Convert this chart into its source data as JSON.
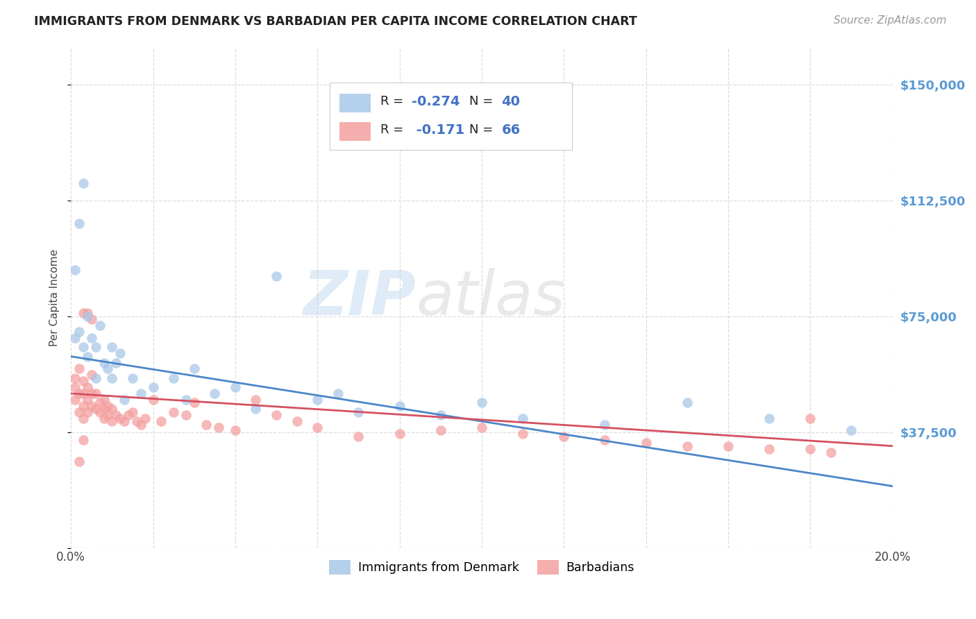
{
  "title": "IMMIGRANTS FROM DENMARK VS BARBADIAN PER CAPITA INCOME CORRELATION CHART",
  "source": "Source: ZipAtlas.com",
  "ylabel": "Per Capita Income",
  "yticks": [
    0,
    37500,
    75000,
    112500,
    150000
  ],
  "ytick_labels": [
    "",
    "$37,500",
    "$75,000",
    "$112,500",
    "$150,000"
  ],
  "xmin": 0.0,
  "xmax": 0.2,
  "ymin": 0,
  "ymax": 162000,
  "legend_label1": "Immigrants from Denmark",
  "legend_label2": "Barbadians",
  "legend_r1": "R = ",
  "legend_rv1": "-0.274",
  "legend_n1_label": "N = ",
  "legend_n1_val": "40",
  "legend_r2": "R = ",
  "legend_rv2": "-0.171",
  "legend_n2_label": "N = ",
  "legend_n2_val": "66",
  "color_blue": "#a8c8e8",
  "color_pink": "#f4a0a0",
  "line_color_blue": "#4a86c8",
  "line_color_pink": "#d45060",
  "watermark": "ZIPatlas",
  "blue_line_x0": 0.0,
  "blue_line_y0": 62000,
  "blue_line_x1": 0.2,
  "blue_line_y1": 20000,
  "pink_line_x0": 0.0,
  "pink_line_y0": 50000,
  "pink_line_x1": 0.2,
  "pink_line_y1": 33000,
  "blue_x": [
    0.001,
    0.001,
    0.002,
    0.002,
    0.003,
    0.003,
    0.004,
    0.004,
    0.005,
    0.006,
    0.006,
    0.007,
    0.008,
    0.009,
    0.01,
    0.01,
    0.011,
    0.012,
    0.013,
    0.015,
    0.017,
    0.02,
    0.025,
    0.028,
    0.03,
    0.035,
    0.04,
    0.045,
    0.05,
    0.06,
    0.065,
    0.07,
    0.08,
    0.09,
    0.1,
    0.11,
    0.13,
    0.15,
    0.17,
    0.19
  ],
  "blue_y": [
    90000,
    68000,
    105000,
    70000,
    65000,
    118000,
    75000,
    62000,
    68000,
    65000,
    55000,
    72000,
    60000,
    58000,
    65000,
    55000,
    60000,
    63000,
    48000,
    55000,
    50000,
    52000,
    55000,
    48000,
    58000,
    50000,
    52000,
    45000,
    88000,
    48000,
    50000,
    44000,
    46000,
    43000,
    47000,
    42000,
    40000,
    47000,
    42000,
    38000
  ],
  "pink_x": [
    0.001,
    0.001,
    0.001,
    0.002,
    0.002,
    0.002,
    0.003,
    0.003,
    0.003,
    0.003,
    0.004,
    0.004,
    0.004,
    0.005,
    0.005,
    0.005,
    0.006,
    0.006,
    0.007,
    0.007,
    0.008,
    0.008,
    0.008,
    0.009,
    0.009,
    0.01,
    0.01,
    0.011,
    0.012,
    0.013,
    0.014,
    0.015,
    0.016,
    0.017,
    0.018,
    0.02,
    0.022,
    0.025,
    0.028,
    0.03,
    0.033,
    0.036,
    0.04,
    0.045,
    0.05,
    0.055,
    0.06,
    0.07,
    0.08,
    0.09,
    0.1,
    0.11,
    0.12,
    0.13,
    0.14,
    0.15,
    0.16,
    0.17,
    0.18,
    0.185,
    0.003,
    0.004,
    0.005,
    0.002,
    0.003,
    0.18
  ],
  "pink_y": [
    55000,
    52000,
    48000,
    58000,
    50000,
    44000,
    54000,
    50000,
    46000,
    42000,
    52000,
    48000,
    44000,
    56000,
    50000,
    46000,
    50000,
    45000,
    47000,
    44000,
    48000,
    45000,
    42000,
    46000,
    43000,
    45000,
    41000,
    43000,
    42000,
    41000,
    43000,
    44000,
    41000,
    40000,
    42000,
    48000,
    41000,
    44000,
    43000,
    47000,
    40000,
    39000,
    38000,
    48000,
    43000,
    41000,
    39000,
    36000,
    37000,
    38000,
    39000,
    37000,
    36000,
    35000,
    34000,
    33000,
    33000,
    32000,
    42000,
    31000,
    76000,
    76000,
    74000,
    28000,
    35000,
    32000
  ]
}
